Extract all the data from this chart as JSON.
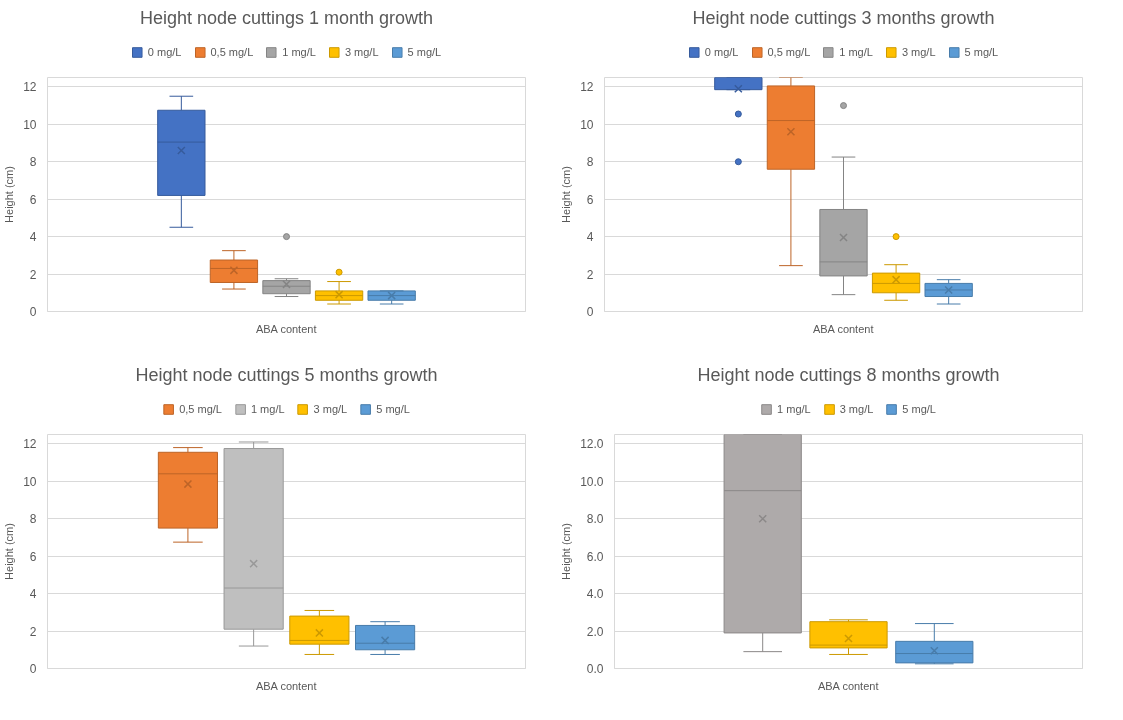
{
  "chart_data": [
    {
      "type": "box",
      "title": "Height node cuttings 1 month growth",
      "xlabel": "ABA content",
      "ylabel": "Height (cm)",
      "categories": [
        null
      ],
      "ylim": [
        0,
        12.5
      ],
      "yticks": [
        0,
        2,
        4,
        6,
        8,
        10,
        12
      ],
      "grid": "y",
      "legend": "top",
      "series": [
        {
          "name": "0 mg/L",
          "color": "#4472c4",
          "boxes": [
            {
              "low": 4.5,
              "q1": 6.2,
              "median": 9.05,
              "q3": 10.75,
              "high": 11.5,
              "mean": 8.6
            }
          ]
        },
        {
          "name": "0,5 mg/L",
          "color": "#ed7d31",
          "boxes": [
            {
              "low": 1.2,
              "q1": 1.55,
              "median": 2.3,
              "q3": 2.75,
              "high": 3.25,
              "mean": 2.2
            }
          ]
        },
        {
          "name": "1 mg/L",
          "color": "#a5a5a5",
          "boxes": [
            {
              "low": 0.8,
              "q1": 0.95,
              "median": 1.35,
              "q3": 1.65,
              "high": 1.75,
              "mean": 1.45,
              "outliers": [
                4.0
              ]
            }
          ]
        },
        {
          "name": "3 mg/L",
          "color": "#ffc000",
          "boxes": [
            {
              "low": 0.4,
              "q1": 0.6,
              "median": 0.85,
              "q3": 1.1,
              "high": 1.6,
              "mean": 0.9,
              "outliers": [
                2.1
              ]
            }
          ]
        },
        {
          "name": "5 mg/L",
          "color": "#5b9bd5",
          "boxes": [
            {
              "low": 0.4,
              "q1": 0.6,
              "median": 0.85,
              "q3": 1.1,
              "high": 1.1,
              "mean": 0.85
            }
          ]
        }
      ]
    },
    {
      "type": "box",
      "title": "Height node cuttings 3 months growth",
      "xlabel": "ABA content",
      "ylabel": "Height (cm)",
      "categories": [
        null
      ],
      "ylim": [
        0,
        12.5
      ],
      "yticks": [
        0,
        2,
        4,
        6,
        8,
        10,
        12
      ],
      "grid": "y",
      "legend": "top",
      "series": [
        {
          "name": "0 mg/L",
          "color": "#4472c4",
          "boxes": [
            {
              "low": 11.85,
              "q1": 11.85,
              "median": 12.5,
              "q3": 12.5,
              "high": 12.5,
              "mean": 11.9,
              "outliers": [
                10.55,
                8.0
              ]
            }
          ]
        },
        {
          "name": "0,5 mg/L",
          "color": "#ed7d31",
          "boxes": [
            {
              "low": 2.45,
              "q1": 7.6,
              "median": 10.2,
              "q3": 12.05,
              "high": 12.5,
              "mean": 9.6
            }
          ]
        },
        {
          "name": "1 mg/L",
          "color": "#a5a5a5",
          "boxes": [
            {
              "low": 0.9,
              "q1": 1.9,
              "median": 2.65,
              "q3": 5.45,
              "high": 8.25,
              "mean": 3.95,
              "outliers": [
                11.0
              ]
            }
          ]
        },
        {
          "name": "3 mg/L",
          "color": "#ffc000",
          "boxes": [
            {
              "low": 0.6,
              "q1": 1.0,
              "median": 1.5,
              "q3": 2.05,
              "high": 2.5,
              "mean": 1.7,
              "outliers": [
                4.0
              ]
            }
          ]
        },
        {
          "name": "5 mg/L",
          "color": "#5b9bd5",
          "boxes": [
            {
              "low": 0.4,
              "q1": 0.8,
              "median": 1.15,
              "q3": 1.5,
              "high": 1.7,
              "mean": 1.15
            }
          ]
        }
      ]
    },
    {
      "type": "box",
      "title": "Height node cuttings 5 months growth",
      "xlabel": "ABA content",
      "ylabel": "Height (cm)",
      "categories": [
        null
      ],
      "ylim": [
        0,
        12.5
      ],
      "yticks": [
        0,
        2,
        4,
        6,
        8,
        10,
        12
      ],
      "grid": "y",
      "legend": "top",
      "series": [
        {
          "name": "0,5 mg/L",
          "color": "#ed7d31",
          "boxes": [
            {
              "low": 6.75,
              "q1": 7.5,
              "median": 10.4,
              "q3": 11.55,
              "high": 11.8,
              "mean": 9.85
            }
          ]
        },
        {
          "name": "1 mg/L",
          "color": "#bfbfbf",
          "boxes": [
            {
              "low": 1.2,
              "q1": 2.1,
              "median": 4.3,
              "q3": 11.75,
              "high": 12.1,
              "mean": 5.6
            }
          ]
        },
        {
          "name": "3 mg/L",
          "color": "#ffc000",
          "boxes": [
            {
              "low": 0.75,
              "q1": 1.3,
              "median": 1.5,
              "q3": 2.8,
              "high": 3.1,
              "mean": 1.9
            }
          ]
        },
        {
          "name": "5 mg/L",
          "color": "#5b9bd5",
          "boxes": [
            {
              "low": 0.75,
              "q1": 1.0,
              "median": 1.35,
              "q3": 2.3,
              "high": 2.5,
              "mean": 1.5
            }
          ]
        }
      ]
    },
    {
      "type": "box",
      "title": "Height node cuttings 8 months growth",
      "xlabel": "ABA content",
      "ylabel": "Height (cm)",
      "categories": [
        null
      ],
      "ylim": [
        0,
        12.5
      ],
      "yticks": [
        {
          "value": 0,
          "label": "0.0"
        },
        {
          "value": 2,
          "label": "2.0"
        },
        {
          "value": 4,
          "label": "4.0"
        },
        {
          "value": 6,
          "label": "6.0"
        },
        {
          "value": 8,
          "label": "8.0"
        },
        {
          "value": 10,
          "label": "10.0"
        },
        {
          "value": 12,
          "label": "12.0"
        }
      ],
      "grid": "y",
      "legend": "top",
      "series": [
        {
          "name": "1 mg/L",
          "color": "#aeaaaa",
          "boxes": [
            {
              "low": 0.9,
              "q1": 1.9,
              "median": 9.5,
              "q3": 12.5,
              "high": 12.5,
              "mean": 8.0
            }
          ]
        },
        {
          "name": "3 mg/L",
          "color": "#ffc000",
          "boxes": [
            {
              "low": 0.75,
              "q1": 1.1,
              "median": 1.25,
              "q3": 2.5,
              "high": 2.6,
              "mean": 1.6
            }
          ]
        },
        {
          "name": "5 mg/L",
          "color": "#5b9bd5",
          "boxes": [
            {
              "low": 0.25,
              "q1": 0.3,
              "median": 0.8,
              "q3": 1.45,
              "high": 2.4,
              "mean": 0.95
            }
          ]
        }
      ]
    }
  ]
}
